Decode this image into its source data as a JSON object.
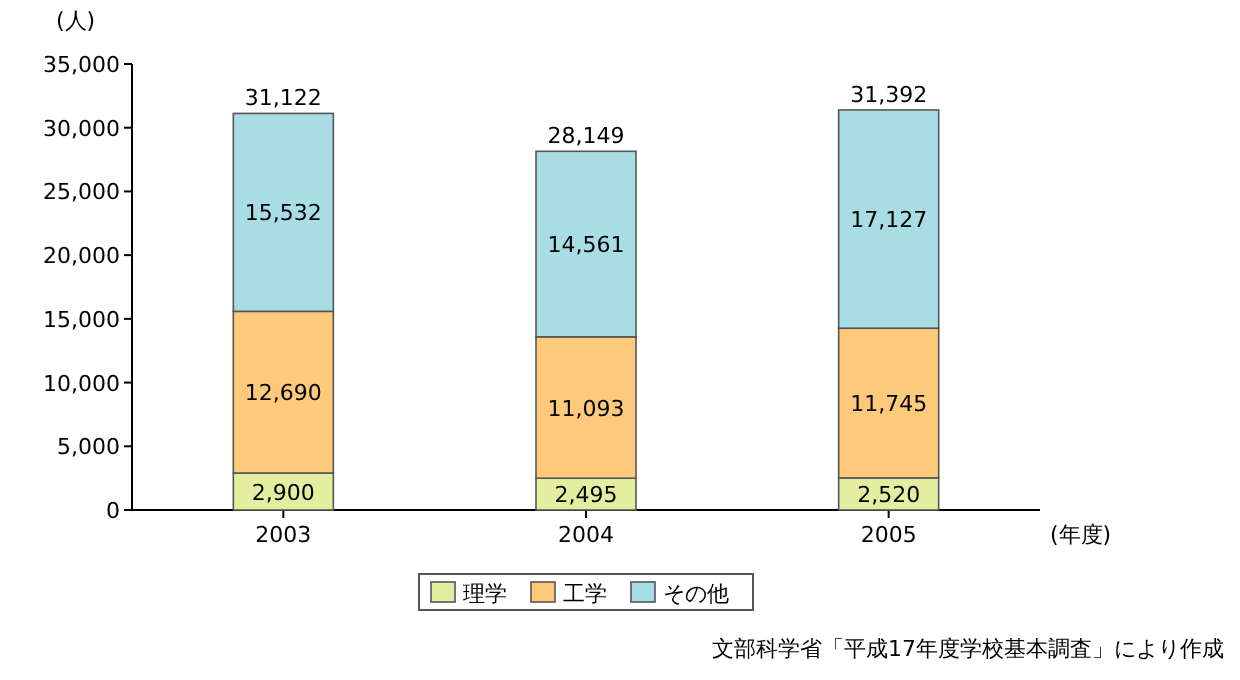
{
  "chart_data": {
    "type": "bar",
    "stacked": true,
    "ylabel": "(人)",
    "xlabel": "(年度)",
    "categories": [
      "2003",
      "2004",
      "2005"
    ],
    "series": [
      {
        "name": "理学",
        "color": "#e3eea0",
        "values": [
          2900,
          2495,
          2520
        ],
        "value_labels": [
          "2,900",
          "2,495",
          "2,520"
        ]
      },
      {
        "name": "工学",
        "color": "#fdc97a",
        "values": [
          12690,
          11093,
          11745
        ],
        "value_labels": [
          "12,690",
          "11,093",
          "11,745"
        ]
      },
      {
        "name": "その他",
        "color": "#a9dde6",
        "values": [
          15532,
          14561,
          17127
        ],
        "value_labels": [
          "15,532",
          "14,561",
          "17,127"
        ]
      }
    ],
    "ylim": [
      0,
      35000
    ],
    "yticks": [
      0,
      {
        "value": 5000,
        "label": "5,000"
      },
      {
        "value": 10000,
        "label": "10,000"
      },
      {
        "value": 15000,
        "label": "15,000"
      },
      {
        "value": 20000,
        "label": "20,000"
      },
      {
        "value": 25000,
        "label": "25,000"
      },
      {
        "value": 30000,
        "label": "30,000"
      },
      {
        "value": 35000,
        "label": "35,000"
      }
    ],
    "totals": [
      "31,122",
      "28,149",
      "31,392"
    ],
    "legend": "bottom",
    "annotations": [
      "文部科学省「平成17年度学校基本調査」により作成"
    ]
  }
}
